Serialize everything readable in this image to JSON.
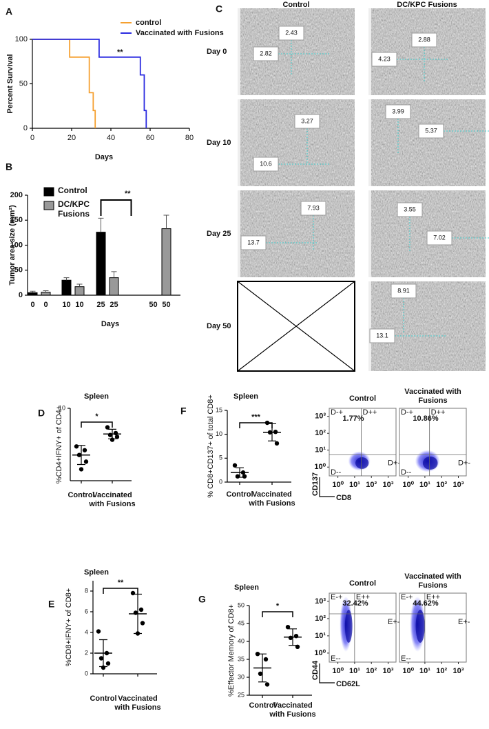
{
  "panel_labels": [
    "A",
    "B",
    "C",
    "D",
    "E",
    "F",
    "G"
  ],
  "ultrasound": {
    "columns": [
      "Control",
      "DC/KPC Fusions"
    ],
    "rows": [
      "Day 0",
      "Day 10",
      "Day 25",
      "Day 50"
    ],
    "measurements": [
      [
        [
          "2.43",
          "2.82"
        ],
        [
          "2.88",
          "4.23"
        ]
      ],
      [
        [
          "3.27",
          "10.6"
        ],
        [
          "3.99",
          "5.37"
        ]
      ],
      [
        [
          "7.93",
          "13.7"
        ],
        [
          "3.55",
          "7.02"
        ]
      ],
      [
        [],
        [
          "8.91",
          "13.1"
        ]
      ]
    ]
  },
  "chart_data": [
    {
      "type": "step",
      "ylabel": "Percent Survival",
      "xlabel": "Days",
      "annotation": "**",
      "xlim": [
        0,
        80
      ],
      "ylim": [
        0,
        100
      ],
      "xticks": [
        0,
        20,
        40,
        60,
        80
      ],
      "yticks": [
        0,
        50,
        100
      ],
      "series": [
        {
          "name": "control",
          "color": "#f5a030",
          "x": [
            0,
            19,
            29,
            31,
            32
          ],
          "values": [
            100,
            80,
            40,
            20,
            0
          ]
        },
        {
          "name": "Vaccinated with Fusions",
          "color": "#2a2ae0",
          "x": [
            0,
            34,
            55,
            57,
            58
          ],
          "values": [
            100,
            80,
            60,
            20,
            0
          ]
        }
      ]
    },
    {
      "type": "bar",
      "ylabel": "Tumor area size (mm²)",
      "xlabel": "Days",
      "annotation": "**",
      "categories": [
        "0",
        "10",
        "25",
        "50"
      ],
      "ylim": [
        0,
        200
      ],
      "yticks": [
        0,
        50,
        100,
        150,
        200
      ],
      "series": [
        {
          "name": "Control",
          "color": "#000000",
          "values": [
            5,
            30,
            126,
            null
          ],
          "errors": [
            3,
            5,
            28,
            null
          ]
        },
        {
          "name": "DC/KPC Fusions",
          "color": "#999999",
          "values": [
            6,
            17,
            35,
            133
          ],
          "errors": [
            3,
            5,
            12,
            27
          ]
        }
      ]
    },
    {
      "type": "dot",
      "title": "Spleen",
      "ylabel": "%CD4+IFNY+ of CD4+",
      "annotation": "*",
      "categories": [
        "Control",
        "Vaccinated with Fusions"
      ],
      "ylim": [
        2.4,
        10
      ],
      "yticks": [
        10
      ],
      "points": [
        [
          6.0,
          5.6,
          5.1,
          4.4,
          3.6
        ],
        [
          8.0,
          7.4,
          7.2,
          7.0,
          6.7
        ]
      ],
      "mean": [
        5.1,
        7.3
      ],
      "sd": [
        1.0,
        0.5
      ]
    },
    {
      "type": "dot",
      "title": "Spleen",
      "ylabel": "%CD8+IFNY+ of CD8+",
      "annotation": "**",
      "categories": [
        "Control",
        "Vaccinated with Fusions"
      ],
      "ylim": [
        0,
        9
      ],
      "yticks": [
        0,
        2,
        4,
        6,
        8
      ],
      "points": [
        [
          4.1,
          2.0,
          1.5,
          1.0,
          0.6
        ],
        [
          7.8,
          6.2,
          5.9,
          4.9,
          3.9
        ]
      ],
      "mean": [
        2.0,
        5.8
      ],
      "sd": [
        1.3,
        1.9
      ]
    },
    {
      "type": "dot",
      "title": "Spleen",
      "ylabel": "% CD8+CD137+ of total CD8+",
      "annotation": "***",
      "categories": [
        "Control",
        "Vaccinated with Fusions"
      ],
      "ylim": [
        0,
        15
      ],
      "yticks": [
        0,
        5,
        10,
        15
      ],
      "points": [
        [
          3.5,
          2.0,
          1.2,
          1.2
        ],
        [
          12.4,
          10.5,
          10.4,
          8.1
        ]
      ],
      "mean": [
        2.0,
        10.4
      ],
      "sd": [
        1.0,
        1.8
      ]
    },
    {
      "type": "flow",
      "title": "Control",
      "gate_label": "1.77%",
      "xlabel": "CD8",
      "ylabel": "CD137",
      "quadrants": [
        "D-+",
        "D++",
        "D--",
        "D+-"
      ],
      "log": true,
      "xlim": [
        0.3,
        3000
      ],
      "ylim": [
        0.3,
        3000
      ],
      "xticks": [
        {
          "value": 1,
          "label": "10⁰"
        },
        {
          "value": 10,
          "label": "10¹"
        },
        {
          "value": 100,
          "label": "10²"
        },
        {
          "value": 1000,
          "label": "10³"
        }
      ],
      "yticks": [
        {
          "value": 1,
          "label": "10⁰"
        },
        {
          "value": 10,
          "label": "10¹"
        },
        {
          "value": 100,
          "label": "10²"
        },
        {
          "value": 1000,
          "label": "10³"
        }
      ]
    },
    {
      "type": "flow",
      "title": "Vaccinated with Fusions",
      "gate_label": "10.86%",
      "quadrants": [
        "D-+",
        "D++",
        "D--",
        "D+-"
      ],
      "log": true,
      "xlim": [
        0.3,
        3000
      ],
      "ylim": [
        0.3,
        3000
      ],
      "xticks": [
        {
          "value": 1,
          "label": "10⁰"
        },
        {
          "value": 10,
          "label": "10¹"
        },
        {
          "value": 100,
          "label": "10²"
        },
        {
          "value": 1000,
          "label": "10³"
        }
      ]
    },
    {
      "type": "dot",
      "title": "Spleen",
      "ylabel": "%Effector Memory of CD8+",
      "annotation": "*",
      "categories": [
        "Control",
        "Vaccinated with Fusions"
      ],
      "ylim": [
        25,
        50
      ],
      "yticks": [
        25,
        30,
        35,
        40,
        45,
        50
      ],
      "points": [
        [
          36.5,
          35.0,
          31.0,
          28.0
        ],
        [
          44.0,
          41.5,
          41.0,
          38.5
        ]
      ],
      "mean": [
        32.6,
        41.2
      ],
      "sd": [
        3.9,
        2.3
      ]
    },
    {
      "type": "flow",
      "title": "Control",
      "gate_label": "32.42%",
      "xlabel": "CD62L",
      "ylabel": "CD44",
      "quadrants": [
        "E-+",
        "E++",
        "E--",
        "E+-"
      ],
      "log": true,
      "xlim": [
        0.3,
        3000
      ],
      "ylim": [
        0.3,
        3000
      ],
      "xticks": [
        {
          "value": 1,
          "label": "10⁰"
        },
        {
          "value": 10,
          "label": "10¹"
        },
        {
          "value": 100,
          "label": "10²"
        },
        {
          "value": 1000,
          "label": "10³"
        }
      ],
      "yticks": [
        {
          "value": 1,
          "label": "10⁰"
        },
        {
          "value": 10,
          "label": "10¹"
        },
        {
          "value": 100,
          "label": "10²"
        },
        {
          "value": 1000,
          "label": "10³"
        }
      ]
    },
    {
      "type": "flow",
      "title": "Vaccinated with Fusions",
      "gate_label": "44.62%",
      "quadrants": [
        "E-+",
        "E++",
        "E--",
        "E+-"
      ],
      "log": true,
      "xlim": [
        0.3,
        3000
      ],
      "ylim": [
        0.3,
        3000
      ],
      "xticks": [
        {
          "value": 1,
          "label": "10⁰"
        },
        {
          "value": 10,
          "label": "10¹"
        },
        {
          "value": 100,
          "label": "10²"
        },
        {
          "value": 1000,
          "label": "10³"
        }
      ]
    }
  ]
}
